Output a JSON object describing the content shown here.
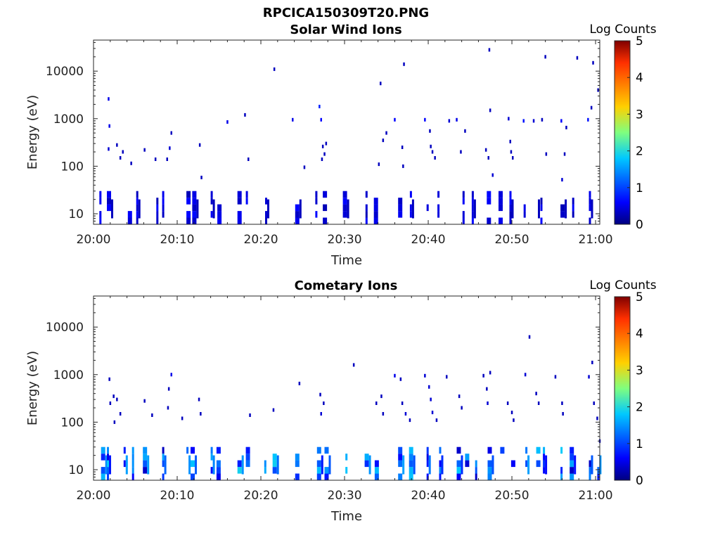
{
  "figure_title": "RPCICA150309T20.PNG",
  "colorbar": {
    "label": "Log Counts",
    "ticks": [
      "0",
      "1",
      "2",
      "3",
      "4",
      "5"
    ],
    "colors": [
      "#00007f",
      "#0000ff",
      "#00c8ff",
      "#7fff7f",
      "#ffd000",
      "#ff3000",
      "#7f0000"
    ]
  },
  "chart_data": [
    {
      "type": "heatmap",
      "title": "Solar Wind Ions",
      "xlabel": "Time",
      "ylabel": "Energy (eV)",
      "x_ticks": [
        "20:00",
        "20:10",
        "20:20",
        "20:30",
        "20:40",
        "20:50",
        "21:00"
      ],
      "y_ticks": [
        "10",
        "100",
        "1000",
        "10000"
      ],
      "y_scale": "log",
      "ylim": [
        6,
        45000
      ],
      "xlim_minutes": [
        0,
        60.5
      ],
      "clim": [
        0,
        5
      ],
      "low_energy_columns_minutes": [
        0.7,
        1.6,
        4.1,
        5.1,
        7.5,
        8.2,
        11.1,
        11.8,
        14.0,
        14.8,
        17.2,
        18.2,
        20.5,
        24.1,
        26.5,
        27.4,
        29.8,
        32.5,
        33.5,
        36.4,
        37.8,
        39.8,
        41.1,
        44.1,
        45.2,
        47.0,
        48.4,
        49.7,
        51.4,
        52.6,
        53.4,
        55.8,
        57.2,
        59.2
      ],
      "points": [
        {
          "t": 1.8,
          "e": 2600,
          "c": 0.5
        },
        {
          "t": 1.9,
          "e": 700,
          "c": 0.5
        },
        {
          "t": 1.8,
          "e": 230,
          "c": 0.4
        },
        {
          "t": 2.8,
          "e": 280,
          "c": 0.3
        },
        {
          "t": 3.5,
          "e": 200,
          "c": 0.3
        },
        {
          "t": 3.2,
          "e": 150,
          "c": 0.3
        },
        {
          "t": 4.5,
          "e": 115,
          "c": 0.3
        },
        {
          "t": 6.1,
          "e": 220,
          "c": 0.3
        },
        {
          "t": 7.4,
          "e": 140,
          "c": 0.3
        },
        {
          "t": 8.8,
          "e": 140,
          "c": 0.3
        },
        {
          "t": 9.1,
          "e": 240,
          "c": 0.4
        },
        {
          "t": 9.3,
          "e": 500,
          "c": 0.3
        },
        {
          "t": 12.7,
          "e": 280,
          "c": 0.3
        },
        {
          "t": 12.9,
          "e": 58,
          "c": 0.3
        },
        {
          "t": 16.0,
          "e": 850,
          "c": 0.5
        },
        {
          "t": 18.1,
          "e": 1200,
          "c": 0.3
        },
        {
          "t": 18.5,
          "e": 140,
          "c": 0.3
        },
        {
          "t": 21.6,
          "e": 11000,
          "c": 0.3
        },
        {
          "t": 23.8,
          "e": 950,
          "c": 0.5
        },
        {
          "t": 25.2,
          "e": 95,
          "c": 0.3
        },
        {
          "t": 27.0,
          "e": 1800,
          "c": 0.8
        },
        {
          "t": 27.2,
          "e": 950,
          "c": 0.6
        },
        {
          "t": 27.4,
          "e": 260,
          "c": 0.3
        },
        {
          "t": 27.6,
          "e": 180,
          "c": 0.3
        },
        {
          "t": 27.8,
          "e": 300,
          "c": 0.3
        },
        {
          "t": 27.3,
          "e": 140,
          "c": 0.3
        },
        {
          "t": 34.3,
          "e": 5500,
          "c": 0.3
        },
        {
          "t": 34.1,
          "e": 110,
          "c": 0.3
        },
        {
          "t": 34.6,
          "e": 350,
          "c": 0.3
        },
        {
          "t": 35.0,
          "e": 500,
          "c": 0.3
        },
        {
          "t": 36.0,
          "e": 950,
          "c": 0.6
        },
        {
          "t": 37.1,
          "e": 14000,
          "c": 0.3
        },
        {
          "t": 36.9,
          "e": 250,
          "c": 0.3
        },
        {
          "t": 37.0,
          "e": 100,
          "c": 0.3
        },
        {
          "t": 39.6,
          "e": 950,
          "c": 0.6
        },
        {
          "t": 40.2,
          "e": 550,
          "c": 0.3
        },
        {
          "t": 40.3,
          "e": 260,
          "c": 0.3
        },
        {
          "t": 40.5,
          "e": 200,
          "c": 0.3
        },
        {
          "t": 40.8,
          "e": 150,
          "c": 0.3
        },
        {
          "t": 42.5,
          "e": 900,
          "c": 0.4
        },
        {
          "t": 43.4,
          "e": 950,
          "c": 0.5
        },
        {
          "t": 43.9,
          "e": 200,
          "c": 0.3
        },
        {
          "t": 44.4,
          "e": 550,
          "c": 0.3
        },
        {
          "t": 47.3,
          "e": 28000,
          "c": 0.3
        },
        {
          "t": 47.4,
          "e": 1500,
          "c": 0.3
        },
        {
          "t": 46.9,
          "e": 220,
          "c": 0.3
        },
        {
          "t": 47.2,
          "e": 150,
          "c": 0.3
        },
        {
          "t": 47.7,
          "e": 65,
          "c": 0.4
        },
        {
          "t": 49.6,
          "e": 1000,
          "c": 0.4
        },
        {
          "t": 49.8,
          "e": 330,
          "c": 0.3
        },
        {
          "t": 49.9,
          "e": 200,
          "c": 0.3
        },
        {
          "t": 50.1,
          "e": 150,
          "c": 0.3
        },
        {
          "t": 51.4,
          "e": 900,
          "c": 0.7
        },
        {
          "t": 52.6,
          "e": 900,
          "c": 0.4
        },
        {
          "t": 53.6,
          "e": 950,
          "c": 0.3
        },
        {
          "t": 54.0,
          "e": 20000,
          "c": 0.3
        },
        {
          "t": 54.1,
          "e": 180,
          "c": 0.3
        },
        {
          "t": 55.9,
          "e": 900,
          "c": 0.6
        },
        {
          "t": 56.5,
          "e": 650,
          "c": 0.3
        },
        {
          "t": 56.3,
          "e": 180,
          "c": 0.3
        },
        {
          "t": 56.0,
          "e": 52,
          "c": 0.4
        },
        {
          "t": 57.8,
          "e": 19000,
          "c": 0.3
        },
        {
          "t": 59.7,
          "e": 15000,
          "c": 0.3
        },
        {
          "t": 59.1,
          "e": 950,
          "c": 0.7
        },
        {
          "t": 59.5,
          "e": 1700,
          "c": 0.3
        },
        {
          "t": 60.3,
          "e": 4000,
          "c": 0.3
        }
      ]
    },
    {
      "type": "heatmap",
      "title": "Cometary Ions",
      "xlabel": "Time",
      "ylabel": "Energy (eV)",
      "x_ticks": [
        "20:00",
        "20:10",
        "20:20",
        "20:30",
        "20:40",
        "20:50",
        "21:00"
      ],
      "y_ticks": [
        "10",
        "100",
        "1000",
        "10000"
      ],
      "y_scale": "log",
      "ylim": [
        6,
        45000
      ],
      "xlim_minutes": [
        0,
        60.5
      ],
      "clim": [
        0,
        5
      ],
      "low_energy_columns_minutes": [
        0.9,
        1.6,
        3.6,
        4.6,
        5.9,
        8.2,
        11.1,
        11.6,
        14.0,
        14.7,
        17.2,
        18.2,
        20.4,
        21.4,
        24.1,
        26.7,
        27.6,
        30.1,
        32.4,
        33.6,
        36.4,
        37.7,
        39.8,
        41.3,
        43.4,
        44.4,
        45.6,
        47.1,
        48.6,
        49.9,
        51.6,
        52.9,
        53.7,
        55.8,
        56.9,
        59.2,
        60.2
      ],
      "points": [
        {
          "t": 1.9,
          "e": 800,
          "c": 0.3
        },
        {
          "t": 2.0,
          "e": 250,
          "c": 0.3
        },
        {
          "t": 2.4,
          "e": 350,
          "c": 0.3
        },
        {
          "t": 2.8,
          "e": 300,
          "c": 0.3
        },
        {
          "t": 3.2,
          "e": 150,
          "c": 0.3
        },
        {
          "t": 2.5,
          "e": 100,
          "c": 0.3
        },
        {
          "t": 6.1,
          "e": 280,
          "c": 0.3
        },
        {
          "t": 7.0,
          "e": 140,
          "c": 0.3
        },
        {
          "t": 9.3,
          "e": 1000,
          "c": 0.5
        },
        {
          "t": 9.0,
          "e": 500,
          "c": 0.3
        },
        {
          "t": 8.9,
          "e": 200,
          "c": 0.3
        },
        {
          "t": 10.6,
          "e": 120,
          "c": 0.3
        },
        {
          "t": 12.6,
          "e": 300,
          "c": 0.3
        },
        {
          "t": 12.8,
          "e": 150,
          "c": 0.3
        },
        {
          "t": 18.7,
          "e": 140,
          "c": 0.3
        },
        {
          "t": 21.5,
          "e": 180,
          "c": 0.3
        },
        {
          "t": 24.6,
          "e": 650,
          "c": 0.3
        },
        {
          "t": 27.1,
          "e": 380,
          "c": 0.3
        },
        {
          "t": 27.5,
          "e": 250,
          "c": 0.3
        },
        {
          "t": 27.2,
          "e": 150,
          "c": 0.4
        },
        {
          "t": 31.1,
          "e": 1600,
          "c": 0.3
        },
        {
          "t": 33.8,
          "e": 250,
          "c": 0.3
        },
        {
          "t": 34.4,
          "e": 350,
          "c": 0.3
        },
        {
          "t": 34.6,
          "e": 150,
          "c": 0.3
        },
        {
          "t": 36.0,
          "e": 950,
          "c": 0.5
        },
        {
          "t": 36.7,
          "e": 800,
          "c": 0.3
        },
        {
          "t": 36.9,
          "e": 250,
          "c": 0.3
        },
        {
          "t": 37.3,
          "e": 150,
          "c": 0.4
        },
        {
          "t": 37.8,
          "e": 110,
          "c": 0.3
        },
        {
          "t": 39.6,
          "e": 950,
          "c": 0.4
        },
        {
          "t": 40.1,
          "e": 550,
          "c": 0.4
        },
        {
          "t": 40.3,
          "e": 300,
          "c": 0.4
        },
        {
          "t": 40.5,
          "e": 160,
          "c": 0.4
        },
        {
          "t": 41.0,
          "e": 110,
          "c": 0.3
        },
        {
          "t": 42.2,
          "e": 900,
          "c": 0.3
        },
        {
          "t": 43.7,
          "e": 350,
          "c": 0.3
        },
        {
          "t": 44.0,
          "e": 200,
          "c": 0.3
        },
        {
          "t": 46.6,
          "e": 950,
          "c": 0.3
        },
        {
          "t": 47.0,
          "e": 500,
          "c": 0.3
        },
        {
          "t": 47.1,
          "e": 250,
          "c": 0.4
        },
        {
          "t": 47.4,
          "e": 1100,
          "c": 0.3
        },
        {
          "t": 49.5,
          "e": 250,
          "c": 0.3
        },
        {
          "t": 50.0,
          "e": 160,
          "c": 0.3
        },
        {
          "t": 50.2,
          "e": 110,
          "c": 0.3
        },
        {
          "t": 52.1,
          "e": 6200,
          "c": 0.3
        },
        {
          "t": 51.6,
          "e": 1000,
          "c": 0.4
        },
        {
          "t": 52.9,
          "e": 400,
          "c": 0.3
        },
        {
          "t": 53.2,
          "e": 250,
          "c": 0.3
        },
        {
          "t": 55.2,
          "e": 900,
          "c": 0.3
        },
        {
          "t": 56.0,
          "e": 250,
          "c": 0.3
        },
        {
          "t": 56.1,
          "e": 150,
          "c": 0.3
        },
        {
          "t": 59.2,
          "e": 900,
          "c": 0.4
        },
        {
          "t": 59.6,
          "e": 1800,
          "c": 0.3
        },
        {
          "t": 59.8,
          "e": 250,
          "c": 0.3
        },
        {
          "t": 60.2,
          "e": 120,
          "c": 0.3
        },
        {
          "t": 60.5,
          "e": 40,
          "c": 0.3
        }
      ]
    }
  ]
}
